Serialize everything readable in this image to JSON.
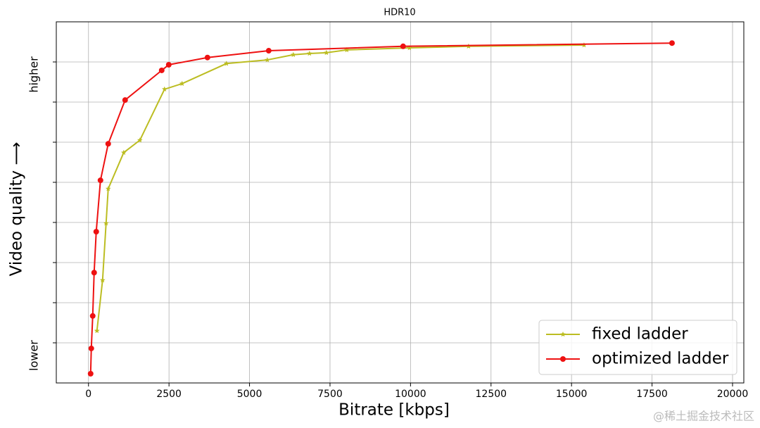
{
  "chart_data": {
    "type": "line",
    "title": "HDR10",
    "xlabel": "Bitrate [kbps]",
    "ylabel": "Video quality ⟶",
    "xlim": [
      -1000,
      20350
    ],
    "xticks": [
      0,
      2500,
      5000,
      7500,
      10000,
      12500,
      15000,
      17500,
      20000
    ],
    "ylim": [
      0,
      9
    ],
    "yticks": [
      {
        "value": 1,
        "label": "lower"
      },
      {
        "value": 2,
        "label": null
      },
      {
        "value": 3,
        "label": null
      },
      {
        "value": 4,
        "label": null
      },
      {
        "value": 5,
        "label": null
      },
      {
        "value": 6,
        "label": null
      },
      {
        "value": 7,
        "label": null
      },
      {
        "value": 8,
        "label": "higher"
      }
    ],
    "grid": true,
    "legend": "lower right",
    "series": [
      {
        "name": "fixed ladder",
        "color": "#bcbd22",
        "marker": "star",
        "x": [
          262,
          437,
          546,
          612,
          1093,
          1596,
          2361,
          2907,
          4284,
          5552,
          6361,
          6863,
          7388,
          8022,
          9967,
          11803,
          15388
        ],
        "values": [
          1.3,
          2.56,
          3.98,
          4.84,
          5.74,
          6.05,
          7.32,
          7.46,
          7.96,
          8.05,
          8.18,
          8.21,
          8.23,
          8.3,
          8.35,
          8.39,
          8.42
        ]
      },
      {
        "name": "optimized ladder",
        "color": "#ee1111",
        "marker": "circle",
        "x": [
          66,
          87,
          131,
          175,
          240,
          372,
          612,
          1137,
          2273,
          2492,
          3694,
          5596,
          9770,
          18120
        ],
        "values": [
          0.23,
          0.86,
          1.67,
          2.75,
          3.77,
          5.05,
          5.96,
          7.05,
          7.79,
          7.93,
          8.11,
          8.28,
          8.39,
          8.47
        ]
      }
    ],
    "watermark": "@稀土掘金技术社区"
  }
}
